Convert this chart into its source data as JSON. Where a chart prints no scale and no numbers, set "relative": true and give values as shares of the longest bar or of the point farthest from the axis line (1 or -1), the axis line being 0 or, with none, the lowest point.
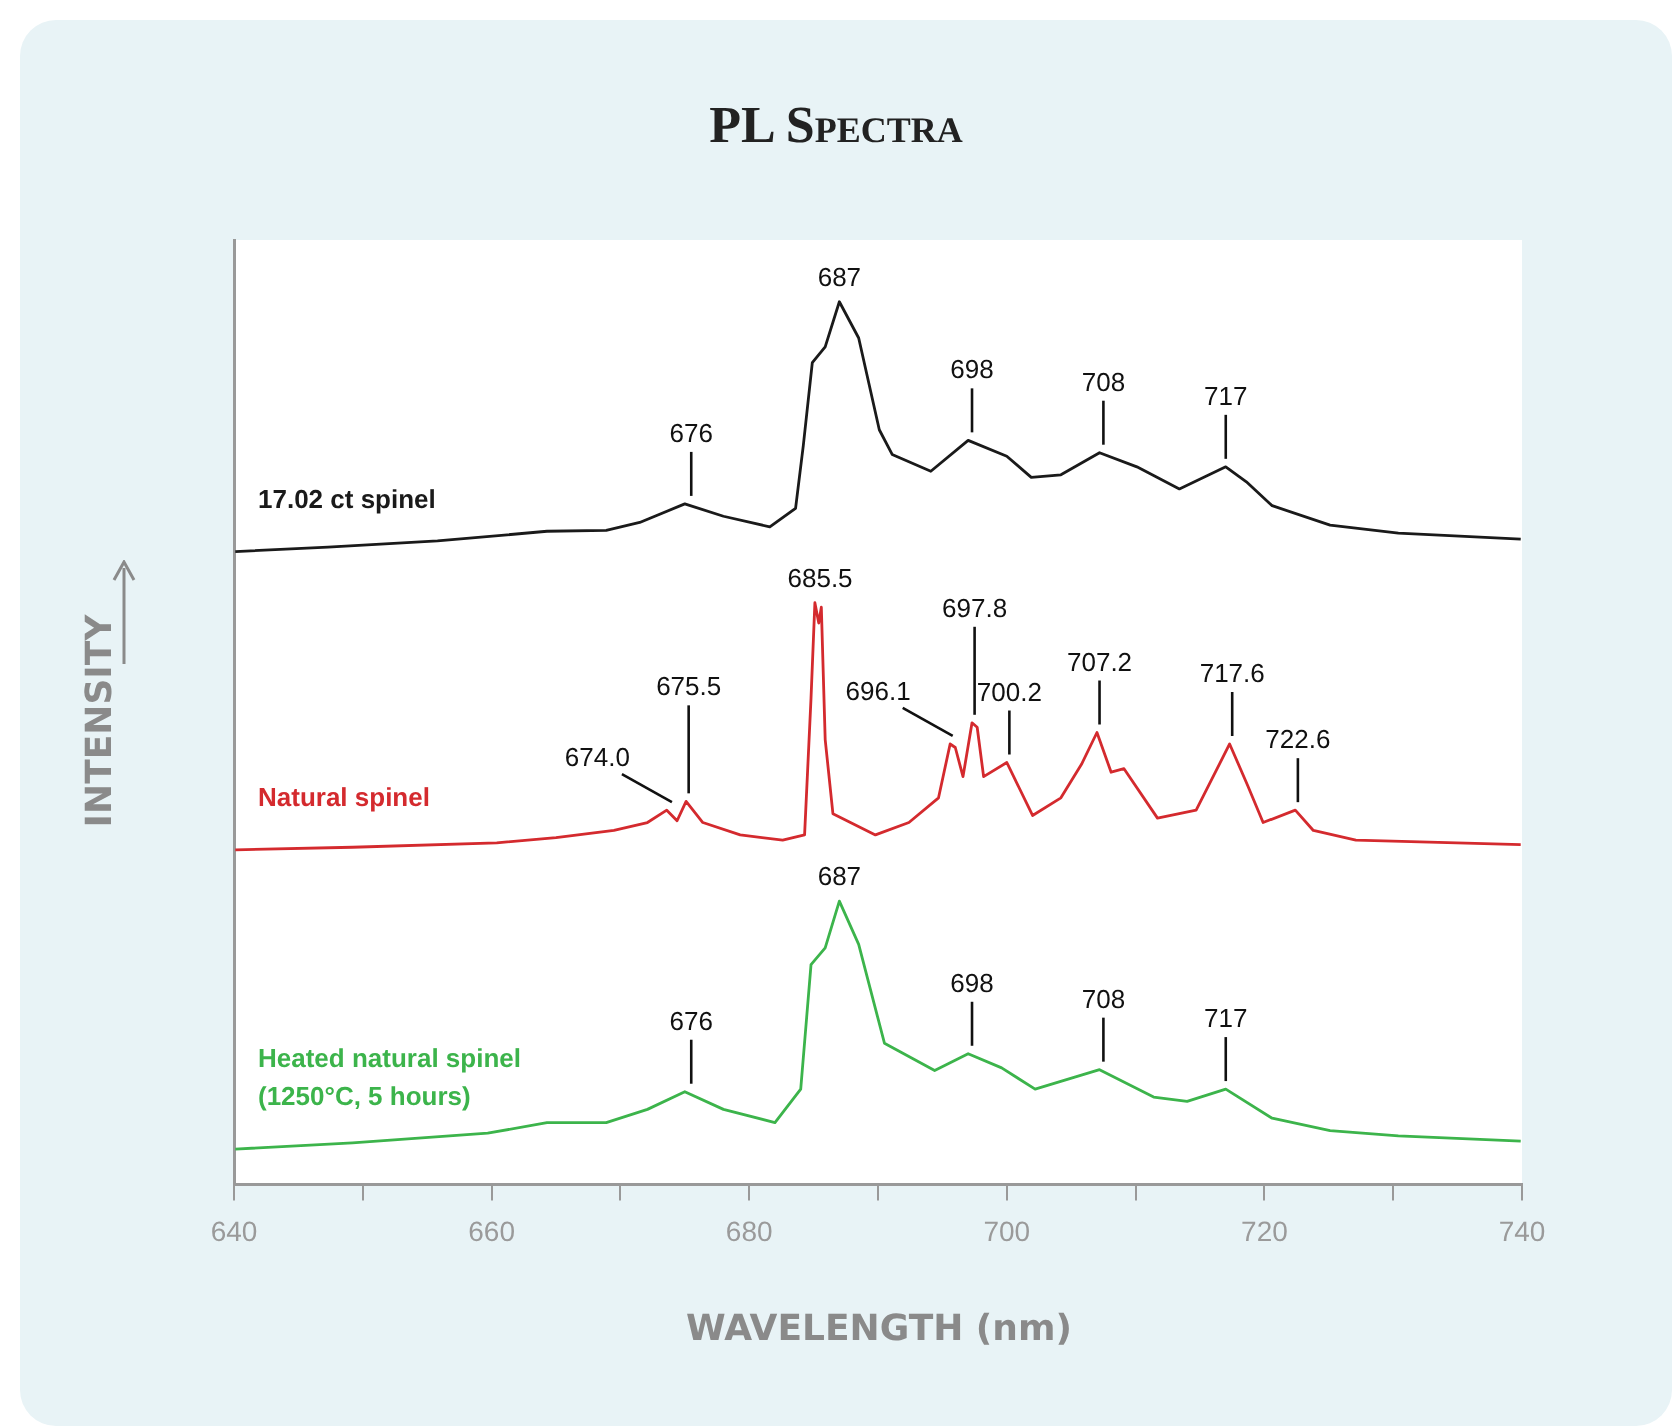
{
  "chart_data": {
    "type": "line",
    "title": "PL Spectra",
    "xlabel": "WAVELENGTH (nm)",
    "ylabel": "INTENSITY",
    "relative": true,
    "grid": false,
    "legend": false,
    "marker": "none",
    "line_style": "solid",
    "xlim": [
      640,
      740
    ],
    "xticks": [
      640,
      {
        "value": 650,
        "label": null
      },
      660,
      {
        "value": 670,
        "label": null
      },
      680,
      {
        "value": 690,
        "label": null
      },
      700,
      {
        "value": 710,
        "label": null
      },
      720,
      {
        "value": 730,
        "label": null
      },
      740
    ],
    "series": [
      {
        "name": "17.02 ct spinel",
        "color": "#1a1a1a",
        "x": [
          640.1,
          647.3,
          655.8,
          664.3,
          668.9,
          671.5,
          675.0,
          678.0,
          681.6,
          683.6,
          684.2,
          684.9,
          685.9,
          687.0,
          688.5,
          690.1,
          691.1,
          694.1,
          697.0,
          700.0,
          701.9,
          704.2,
          707.2,
          710.1,
          713.4,
          717.0,
          718.6,
          720.6,
          725.1,
          730.4,
          739.9
        ],
        "values": [
          0.717,
          0.722,
          0.729,
          0.74,
          0.741,
          0.75,
          0.771,
          0.757,
          0.745,
          0.766,
          0.837,
          0.931,
          0.949,
          1,
          0.959,
          0.855,
          0.827,
          0.808,
          0.843,
          0.825,
          0.801,
          0.804,
          0.829,
          0.813,
          0.788,
          0.813,
          0.796,
          0.769,
          0.747,
          0.738,
          0.731
        ]
      },
      {
        "name": "Natural spinel",
        "color": "#d42a2e",
        "x": [
          640.1,
          649.2,
          660.4,
          665.0,
          669.5,
          672.1,
          673.6,
          674.4,
          675.1,
          676.4,
          679.3,
          682.6,
          684.3,
          684.8,
          685.1,
          685.4,
          685.6,
          685.9,
          686.5,
          689.8,
          692.4,
          694.7,
          695.6,
          696.0,
          696.6,
          697.3,
          697.7,
          698.2,
          700.0,
          702.0,
          704.2,
          705.8,
          707.0,
          708.1,
          709.1,
          711.7,
          714.7,
          717.3,
          718.7,
          719.9,
          722.4,
          723.8,
          727.1,
          739.9
        ],
        "values": [
          0.379,
          0.382,
          0.387,
          0.393,
          0.401,
          0.41,
          0.424,
          0.412,
          0.434,
          0.41,
          0.396,
          0.39,
          0.396,
          0.551,
          0.659,
          0.636,
          0.654,
          0.504,
          0.42,
          0.396,
          0.41,
          0.438,
          0.499,
          0.495,
          0.462,
          0.523,
          0.518,
          0.462,
          0.478,
          0.418,
          0.438,
          0.476,
          0.512,
          0.467,
          0.471,
          0.415,
          0.424,
          0.499,
          0.452,
          0.41,
          0.424,
          0.401,
          0.39,
          0.385
        ]
      },
      {
        "name": "Heated natural spinel\n(1250°C, 5 hours)",
        "color": "#3cb44b",
        "x": [
          640.1,
          649.2,
          659.7,
          664.3,
          668.9,
          672.1,
          675.0,
          678.0,
          682.0,
          684.0,
          684.8,
          685.9,
          687.0,
          688.5,
          690.5,
          694.4,
          697.0,
          699.6,
          702.2,
          707.2,
          711.4,
          714.0,
          717.0,
          720.6,
          725.1,
          730.4,
          739.9
        ],
        "values": [
          0.04,
          0.047,
          0.058,
          0.07,
          0.07,
          0.085,
          0.105,
          0.085,
          0.07,
          0.108,
          0.249,
          0.268,
          0.321,
          0.272,
          0.16,
          0.129,
          0.148,
          0.132,
          0.108,
          0.13,
          0.099,
          0.094,
          0.108,
          0.075,
          0.061,
          0.055,
          0.049
        ]
      }
    ],
    "annotations": [
      {
        "text": "676",
        "x": 675.5,
        "y": 0.771
      },
      {
        "text": "687",
        "x": 687,
        "y": 1
      },
      {
        "text": "698",
        "x": 697.3,
        "y": 0.843
      },
      {
        "text": "708",
        "x": 707.5,
        "y": 0.829
      },
      {
        "text": "717",
        "x": 717,
        "y": 0.813
      },
      {
        "text": "674.0",
        "x": 674,
        "y": 0.424
      },
      {
        "text": "675.5",
        "x": 675.3,
        "y": 0.434
      },
      {
        "text": "685.5",
        "x": 685.5,
        "y": 0.659
      },
      {
        "text": "696.1",
        "x": 695.8,
        "y": 0.499
      },
      {
        "text": "697.8",
        "x": 697.5,
        "y": 0.523
      },
      {
        "text": "700.2",
        "x": 700.2,
        "y": 0.478
      },
      {
        "text": "707.2",
        "x": 707.2,
        "y": 0.512
      },
      {
        "text": "717.6",
        "x": 717.5,
        "y": 0.499
      },
      {
        "text": "722.6",
        "x": 722.6,
        "y": 0.424
      },
      {
        "text": "676",
        "x": 675.5,
        "y": 0.105
      },
      {
        "text": "687",
        "x": 687,
        "y": 0.321
      },
      {
        "text": "698",
        "x": 697.3,
        "y": 0.148
      },
      {
        "text": "708",
        "x": 707.5,
        "y": 0.13
      },
      {
        "text": "717",
        "x": 717,
        "y": 0.108
      }
    ]
  }
}
